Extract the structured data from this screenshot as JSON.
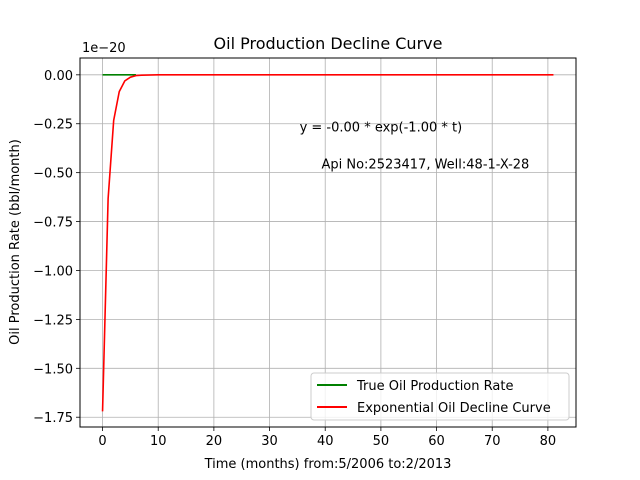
{
  "chart_data": {
    "type": "line",
    "title": "Oil Production Decline Curve",
    "xlabel": "Time (months) from:5/2006 to:2/2013",
    "ylabel": "Oil Production Rate (bbl/month)",
    "y_offset_label": "1e−20",
    "xlim": [
      -4.05,
      85.05
    ],
    "ylim": [
      -1.8,
      0.086
    ],
    "x_ticks": [
      0,
      10,
      20,
      30,
      40,
      50,
      60,
      70,
      80
    ],
    "y_ticks": [
      0.0,
      -0.25,
      -0.5,
      -0.75,
      -1.0,
      -1.25,
      -1.5,
      -1.75
    ],
    "y_tick_labels": [
      "0.00",
      "−0.25",
      "−0.50",
      "−0.75",
      "−1.00",
      "−1.25",
      "−1.50",
      "−1.75"
    ],
    "grid": true,
    "legend_position": "bottom-right",
    "annotations": [
      {
        "text": "y = -0.00 * exp(-1.00 * t)",
        "x": 50,
        "y": -0.29
      },
      {
        "text": "Api No:2523417, Well:48-1-X-28",
        "x": 58,
        "y": -0.48
      }
    ],
    "series": [
      {
        "name": "True Oil Production Rate",
        "color": "#008000",
        "x": [
          0,
          6
        ],
        "y": [
          0,
          0
        ]
      },
      {
        "name": "Exponential Oil Decline Curve",
        "color": "#ff0000",
        "x": [
          0,
          1,
          2,
          3,
          4,
          5,
          6,
          7,
          8,
          10,
          20,
          30,
          40,
          50,
          60,
          70,
          81
        ],
        "y": [
          -1.72,
          -0.633,
          -0.233,
          -0.086,
          -0.031,
          -0.012,
          -0.004,
          -0.002,
          -0.001,
          0,
          0,
          0,
          0,
          0,
          0,
          0,
          0
        ]
      }
    ]
  }
}
